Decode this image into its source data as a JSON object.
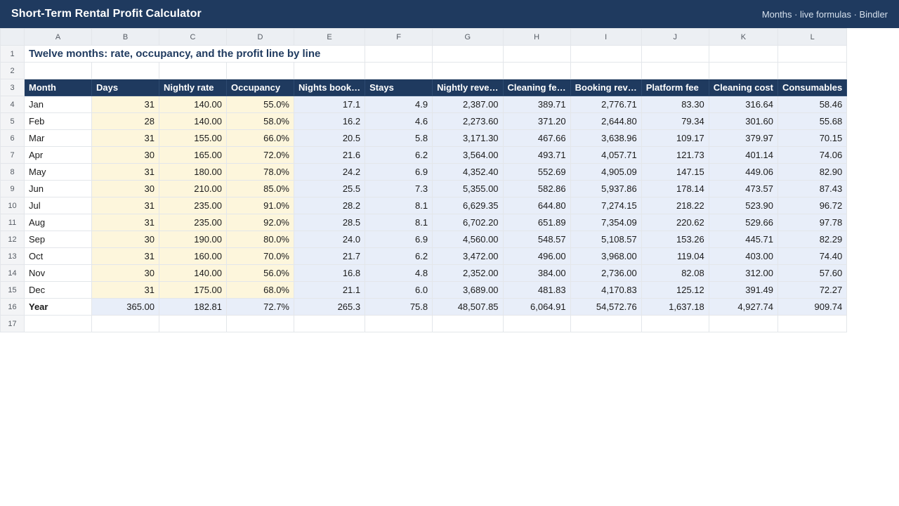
{
  "app": {
    "title": "Short-Term Rental Profit Calculator",
    "meta": "Months · live formulas · Bindler"
  },
  "sheet": {
    "column_letters": [
      "A",
      "B",
      "C",
      "D",
      "E",
      "F",
      "G",
      "H",
      "I",
      "J",
      "K",
      "L"
    ],
    "row_numbers": [
      "1",
      "2",
      "3",
      "4",
      "5",
      "6",
      "7",
      "8",
      "9",
      "10",
      "11",
      "12",
      "13",
      "14",
      "15",
      "16",
      "17"
    ],
    "title": "Twelve months: rate, occupancy, and the profit line by line",
    "headers": [
      "Month",
      "Days",
      "Nightly rate",
      "Occupancy",
      "Nights book…",
      "Stays",
      "Nightly reve…",
      "Cleaning fe…",
      "Booking rev…",
      "Platform fee",
      "Cleaning cost",
      "Consumables"
    ],
    "rows": [
      [
        "Jan",
        "31",
        "140.00",
        "55.0%",
        "17.1",
        "4.9",
        "2,387.00",
        "389.71",
        "2,776.71",
        "83.30",
        "316.64",
        "58.46"
      ],
      [
        "Feb",
        "28",
        "140.00",
        "58.0%",
        "16.2",
        "4.6",
        "2,273.60",
        "371.20",
        "2,644.80",
        "79.34",
        "301.60",
        "55.68"
      ],
      [
        "Mar",
        "31",
        "155.00",
        "66.0%",
        "20.5",
        "5.8",
        "3,171.30",
        "467.66",
        "3,638.96",
        "109.17",
        "379.97",
        "70.15"
      ],
      [
        "Apr",
        "30",
        "165.00",
        "72.0%",
        "21.6",
        "6.2",
        "3,564.00",
        "493.71",
        "4,057.71",
        "121.73",
        "401.14",
        "74.06"
      ],
      [
        "May",
        "31",
        "180.00",
        "78.0%",
        "24.2",
        "6.9",
        "4,352.40",
        "552.69",
        "4,905.09",
        "147.15",
        "449.06",
        "82.90"
      ],
      [
        "Jun",
        "30",
        "210.00",
        "85.0%",
        "25.5",
        "7.3",
        "5,355.00",
        "582.86",
        "5,937.86",
        "178.14",
        "473.57",
        "87.43"
      ],
      [
        "Jul",
        "31",
        "235.00",
        "91.0%",
        "28.2",
        "8.1",
        "6,629.35",
        "644.80",
        "7,274.15",
        "218.22",
        "523.90",
        "96.72"
      ],
      [
        "Aug",
        "31",
        "235.00",
        "92.0%",
        "28.5",
        "8.1",
        "6,702.20",
        "651.89",
        "7,354.09",
        "220.62",
        "529.66",
        "97.78"
      ],
      [
        "Sep",
        "30",
        "190.00",
        "80.0%",
        "24.0",
        "6.9",
        "4,560.00",
        "548.57",
        "5,108.57",
        "153.26",
        "445.71",
        "82.29"
      ],
      [
        "Oct",
        "31",
        "160.00",
        "70.0%",
        "21.7",
        "6.2",
        "3,472.00",
        "496.00",
        "3,968.00",
        "119.04",
        "403.00",
        "74.40"
      ],
      [
        "Nov",
        "30",
        "140.00",
        "56.0%",
        "16.8",
        "4.8",
        "2,352.00",
        "384.00",
        "2,736.00",
        "82.08",
        "312.00",
        "57.60"
      ],
      [
        "Dec",
        "31",
        "175.00",
        "68.0%",
        "21.1",
        "6.0",
        "3,689.00",
        "481.83",
        "4,170.83",
        "125.12",
        "391.49",
        "72.27"
      ]
    ],
    "total": [
      "Year",
      "365.00",
      "182.81",
      "72.7%",
      "265.3",
      "75.8",
      "48,507.85",
      "6,064.91",
      "54,572.76",
      "1,637.18",
      "4,927.74",
      "909.74"
    ]
  },
  "colors": {
    "header_bar": "#1f3a5f",
    "input_fill": "#fdf6dc",
    "calc_fill": "#e8eef9"
  }
}
